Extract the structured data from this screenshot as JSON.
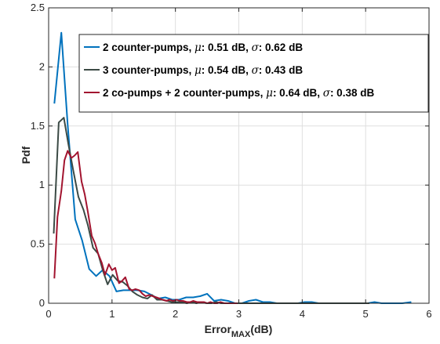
{
  "chart_data": {
    "type": "line",
    "title": "",
    "xlabel": {
      "main": "Error",
      "sub": "MAX",
      "unit": "(dB)"
    },
    "ylabel": "Pdf",
    "xlim": [
      0,
      6
    ],
    "ylim": [
      0,
      2.5
    ],
    "xticks": [
      0,
      1,
      2,
      3,
      4,
      5,
      6
    ],
    "yticks": [
      0,
      0.5,
      1,
      1.5,
      2,
      2.5
    ],
    "xtick_labels": [
      "0",
      "1",
      "2",
      "3",
      "4",
      "5",
      "6"
    ],
    "ytick_labels": [
      "0",
      "0.5",
      "1",
      "1.5",
      "2",
      "2.5"
    ],
    "grid": true,
    "legend_position": "top-right",
    "series": [
      {
        "name": "2 counter-pumps",
        "stats": {
          "mu_sym": "μ",
          "mu_text": ": 0.51 dB, ",
          "sigma_sym": "σ",
          "sigma_text": ": 0.62 dB"
        },
        "color": "#0072BD",
        "x": [
          0.09,
          0.2,
          0.3,
          0.42,
          0.53,
          0.64,
          0.75,
          0.85,
          0.96,
          1.07,
          1.18,
          1.29,
          1.4,
          1.51,
          1.62,
          1.73,
          1.84,
          1.95,
          2.06,
          2.17,
          2.28,
          2.39,
          2.5,
          2.61,
          2.72,
          2.83,
          2.94,
          3.05,
          3.16,
          3.27,
          3.38,
          3.49,
          3.6,
          3.71,
          3.82,
          3.93,
          4.04,
          4.15,
          4.26,
          4.37,
          4.48,
          4.59,
          4.7,
          4.81,
          4.92,
          5.03,
          5.14,
          5.25,
          5.36,
          5.47,
          5.58,
          5.72
        ],
        "y": [
          1.69,
          2.29,
          1.51,
          0.71,
          0.53,
          0.29,
          0.23,
          0.28,
          0.23,
          0.1,
          0.11,
          0.11,
          0.11,
          0.1,
          0.07,
          0.04,
          0.05,
          0.03,
          0.03,
          0.05,
          0.05,
          0.06,
          0.08,
          0.02,
          0.03,
          0.02,
          0.0,
          0.0,
          0.02,
          0.03,
          0.01,
          0.01,
          0.0,
          0.0,
          0.0,
          0.0,
          0.01,
          0.01,
          0.0,
          0.0,
          0.0,
          0.0,
          0.0,
          0.0,
          0.0,
          0.0,
          0.01,
          0.0,
          0.0,
          0.0,
          0.0,
          0.01
        ]
      },
      {
        "name": "3 counter-pumps",
        "stats": {
          "mu_sym": "μ",
          "mu_text": ": 0.54 dB, ",
          "sigma_sym": "σ",
          "sigma_text": ": 0.43 dB"
        },
        "color": "#3B4A45",
        "x": [
          0.08,
          0.16,
          0.24,
          0.31,
          0.39,
          0.47,
          0.55,
          0.62,
          0.7,
          0.78,
          0.86,
          0.93,
          1.01,
          1.09,
          1.17,
          1.24,
          1.32,
          1.4,
          1.48,
          1.56,
          1.63,
          1.71,
          1.79,
          1.87,
          1.94,
          2.02,
          2.1,
          2.18,
          2.26,
          2.33,
          2.41,
          2.49,
          2.57,
          2.64,
          2.72,
          2.8,
          2.88,
          2.96,
          3.03,
          3.11,
          3.19,
          3.27,
          3.34,
          3.42,
          3.5,
          3.58,
          3.66,
          3.73,
          3.81,
          3.89,
          3.97,
          4.04,
          4.12,
          4.2,
          4.28,
          4.36,
          4.43,
          4.51,
          4.59,
          4.67,
          4.74,
          4.82,
          4.9,
          4.98,
          5.06
        ],
        "y": [
          0.59,
          1.53,
          1.57,
          1.35,
          1.12,
          0.9,
          0.79,
          0.66,
          0.47,
          0.42,
          0.27,
          0.16,
          0.24,
          0.19,
          0.18,
          0.15,
          0.1,
          0.07,
          0.05,
          0.04,
          0.07,
          0.03,
          0.03,
          0.02,
          0.01,
          0.01,
          0.01,
          0.0,
          0.01,
          0.0,
          0.01,
          0.0,
          0.0,
          0.01,
          0.0,
          0.0,
          0.0,
          0.0,
          0.0,
          0.0,
          0.0,
          0.0,
          0.0,
          0.0,
          0.0,
          0.0,
          0.0,
          0.0,
          0.0,
          0.0,
          0.0,
          0.0,
          0.0,
          0.0,
          0.0,
          0.0,
          0.0,
          0.0,
          0.0,
          0.0,
          0.0,
          0.0,
          0.0,
          0.0,
          0.0
        ]
      },
      {
        "name": "2 co-pumps + 2 counter-pumps",
        "stats": {
          "mu_sym": "μ",
          "mu_text": ": 0.64 dB, ",
          "sigma_sym": "σ",
          "sigma_text": ": 0.38 dB"
        },
        "color": "#A2142F",
        "x": [
          0.09,
          0.14,
          0.2,
          0.25,
          0.3,
          0.36,
          0.41,
          0.46,
          0.52,
          0.57,
          0.62,
          0.68,
          0.73,
          0.78,
          0.84,
          0.89,
          0.95,
          1.0,
          1.05,
          1.11,
          1.16,
          1.21,
          1.27,
          1.32,
          1.37,
          1.43,
          1.48,
          1.53,
          1.59,
          1.64,
          1.7,
          1.75,
          1.8,
          1.86,
          1.91,
          1.96,
          2.02,
          2.07,
          2.12,
          2.18,
          2.23,
          2.28,
          2.34,
          2.39,
          2.45,
          2.5,
          2.55,
          2.61,
          2.66,
          2.71,
          2.77,
          2.82,
          2.87,
          2.93,
          2.98
        ],
        "y": [
          0.21,
          0.73,
          0.95,
          1.21,
          1.29,
          1.23,
          1.25,
          1.28,
          1.03,
          0.92,
          0.77,
          0.57,
          0.51,
          0.42,
          0.34,
          0.24,
          0.33,
          0.28,
          0.3,
          0.17,
          0.19,
          0.22,
          0.12,
          0.11,
          0.12,
          0.11,
          0.08,
          0.06,
          0.07,
          0.06,
          0.05,
          0.04,
          0.03,
          0.02,
          0.03,
          0.02,
          0.03,
          0.02,
          0.02,
          0.01,
          0.01,
          0.02,
          0.01,
          0.01,
          0.01,
          0.0,
          0.01,
          0.0,
          0.0,
          0.01,
          0.0,
          0.0,
          0.0,
          0.0,
          0.0
        ]
      }
    ]
  }
}
